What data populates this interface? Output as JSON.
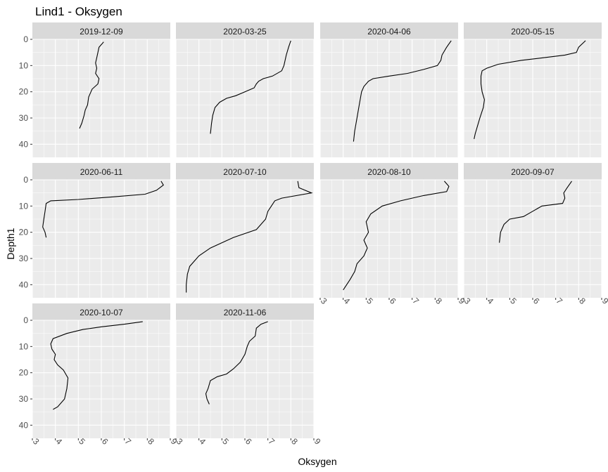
{
  "chart_data": {
    "type": "line",
    "title": "Lind1  -  Oksygen",
    "xlabel": "Oksygen",
    "ylabel": "Depth1",
    "xlim": [
      3,
      9
    ],
    "ylim": [
      45,
      0
    ],
    "y_reversed": true,
    "x_ticks": [
      3,
      4,
      5,
      6,
      7,
      8,
      9
    ],
    "y_ticks": [
      0,
      10,
      20,
      30,
      40
    ],
    "facet_layout": "4 columns, shared axes",
    "grid": true,
    "colors": {
      "panel": "#ebebeb",
      "strip": "#d9d9d9",
      "grid": "#ffffff",
      "line": "#000000"
    },
    "panels": [
      {
        "label": "2019-12-09",
        "points": [
          [
            6.1,
            1
          ],
          [
            6.0,
            2
          ],
          [
            5.9,
            3
          ],
          [
            5.85,
            5
          ],
          [
            5.8,
            7
          ],
          [
            5.75,
            9
          ],
          [
            5.8,
            11
          ],
          [
            5.75,
            13
          ],
          [
            5.9,
            15
          ],
          [
            5.85,
            17
          ],
          [
            5.6,
            19
          ],
          [
            5.45,
            22
          ],
          [
            5.4,
            25
          ],
          [
            5.3,
            27
          ],
          [
            5.25,
            29
          ],
          [
            5.15,
            32
          ],
          [
            5.05,
            34
          ]
        ]
      },
      {
        "label": "2020-03-25",
        "points": [
          [
            8.0,
            0.5
          ],
          [
            7.9,
            3
          ],
          [
            7.8,
            6
          ],
          [
            7.7,
            10
          ],
          [
            7.6,
            12
          ],
          [
            7.2,
            14
          ],
          [
            6.8,
            15
          ],
          [
            6.6,
            16
          ],
          [
            6.5,
            17
          ],
          [
            6.4,
            18.5
          ],
          [
            6.0,
            20
          ],
          [
            5.6,
            21.5
          ],
          [
            5.2,
            22.5
          ],
          [
            4.9,
            24
          ],
          [
            4.7,
            26
          ],
          [
            4.6,
            29
          ],
          [
            4.55,
            32
          ],
          [
            4.5,
            36
          ]
        ]
      },
      {
        "label": "2020-04-06",
        "points": [
          [
            8.7,
            0.5
          ],
          [
            8.5,
            3
          ],
          [
            8.3,
            6
          ],
          [
            8.25,
            8
          ],
          [
            8.1,
            10
          ],
          [
            7.5,
            11.5
          ],
          [
            6.8,
            13
          ],
          [
            6.0,
            14
          ],
          [
            5.3,
            15
          ],
          [
            5.1,
            16
          ],
          [
            4.9,
            18
          ],
          [
            4.8,
            20
          ],
          [
            4.7,
            25
          ],
          [
            4.6,
            30
          ],
          [
            4.5,
            35
          ],
          [
            4.45,
            39
          ]
        ]
      },
      {
        "label": "2020-05-15",
        "points": [
          [
            8.3,
            0.5
          ],
          [
            8.0,
            3
          ],
          [
            7.9,
            5
          ],
          [
            7.4,
            6
          ],
          [
            6.5,
            7
          ],
          [
            5.5,
            8
          ],
          [
            4.5,
            9.5
          ],
          [
            4.0,
            11
          ],
          [
            3.8,
            12
          ],
          [
            3.75,
            14
          ],
          [
            3.75,
            17
          ],
          [
            3.8,
            20
          ],
          [
            3.9,
            23
          ],
          [
            3.85,
            26
          ],
          [
            3.7,
            30
          ],
          [
            3.6,
            33
          ],
          [
            3.5,
            36
          ],
          [
            3.45,
            38
          ]
        ]
      },
      {
        "label": "2020-06-11",
        "points": [
          [
            8.6,
            0.5
          ],
          [
            8.7,
            2
          ],
          [
            8.4,
            4
          ],
          [
            7.9,
            5.5
          ],
          [
            6.5,
            6.5
          ],
          [
            5.0,
            7.5
          ],
          [
            3.8,
            8
          ],
          [
            3.6,
            9
          ],
          [
            3.55,
            12
          ],
          [
            3.5,
            15
          ],
          [
            3.45,
            18
          ],
          [
            3.55,
            20
          ],
          [
            3.6,
            22
          ]
        ]
      },
      {
        "label": "2020-07-10",
        "points": [
          [
            8.3,
            0.5
          ],
          [
            8.35,
            3
          ],
          [
            8.9,
            5
          ],
          [
            7.6,
            7
          ],
          [
            7.3,
            8
          ],
          [
            7.0,
            12
          ],
          [
            6.9,
            15
          ],
          [
            6.5,
            19
          ],
          [
            5.5,
            22
          ],
          [
            4.5,
            26
          ],
          [
            4.0,
            29
          ],
          [
            3.6,
            33
          ],
          [
            3.5,
            36
          ],
          [
            3.45,
            40
          ],
          [
            3.45,
            43
          ]
        ]
      },
      {
        "label": "2020-08-10",
        "points": [
          [
            8.4,
            0.5
          ],
          [
            8.6,
            2.5
          ],
          [
            8.5,
            4.5
          ],
          [
            7.5,
            6
          ],
          [
            6.5,
            8
          ],
          [
            5.7,
            10
          ],
          [
            5.2,
            13
          ],
          [
            5.0,
            16
          ],
          [
            5.1,
            20
          ],
          [
            4.9,
            23
          ],
          [
            5.05,
            26
          ],
          [
            4.9,
            29
          ],
          [
            4.6,
            32
          ],
          [
            4.5,
            35
          ],
          [
            4.3,
            38
          ],
          [
            4.0,
            42
          ]
        ]
      },
      {
        "label": "2020-09-07",
        "points": [
          [
            7.7,
            0.5
          ],
          [
            7.5,
            3
          ],
          [
            7.35,
            5
          ],
          [
            7.4,
            7
          ],
          [
            7.3,
            9
          ],
          [
            6.4,
            10
          ],
          [
            6.0,
            12
          ],
          [
            5.6,
            14
          ],
          [
            5.0,
            15
          ],
          [
            4.75,
            17
          ],
          [
            4.6,
            20
          ],
          [
            4.55,
            24
          ]
        ]
      },
      {
        "label": "2020-10-07",
        "points": [
          [
            7.8,
            0.5
          ],
          [
            7.0,
            1.5
          ],
          [
            6.0,
            2.5
          ],
          [
            5.2,
            3.5
          ],
          [
            4.5,
            5
          ],
          [
            3.9,
            7
          ],
          [
            3.8,
            9
          ],
          [
            3.85,
            11
          ],
          [
            4.0,
            13
          ],
          [
            3.95,
            15
          ],
          [
            4.1,
            17
          ],
          [
            4.35,
            19
          ],
          [
            4.55,
            22
          ],
          [
            4.5,
            26
          ],
          [
            4.4,
            30
          ],
          [
            4.1,
            33
          ],
          [
            3.9,
            34
          ]
        ]
      },
      {
        "label": "2020-11-06",
        "points": [
          [
            7.0,
            0.5
          ],
          [
            6.7,
            1.5
          ],
          [
            6.5,
            3
          ],
          [
            6.45,
            6
          ],
          [
            6.2,
            8
          ],
          [
            6.1,
            10
          ],
          [
            6.0,
            13
          ],
          [
            5.8,
            16
          ],
          [
            5.5,
            18.5
          ],
          [
            5.2,
            20.5
          ],
          [
            4.8,
            21.5
          ],
          [
            4.5,
            23
          ],
          [
            4.4,
            26
          ],
          [
            4.3,
            28
          ],
          [
            4.35,
            30
          ],
          [
            4.45,
            32
          ]
        ]
      }
    ]
  }
}
